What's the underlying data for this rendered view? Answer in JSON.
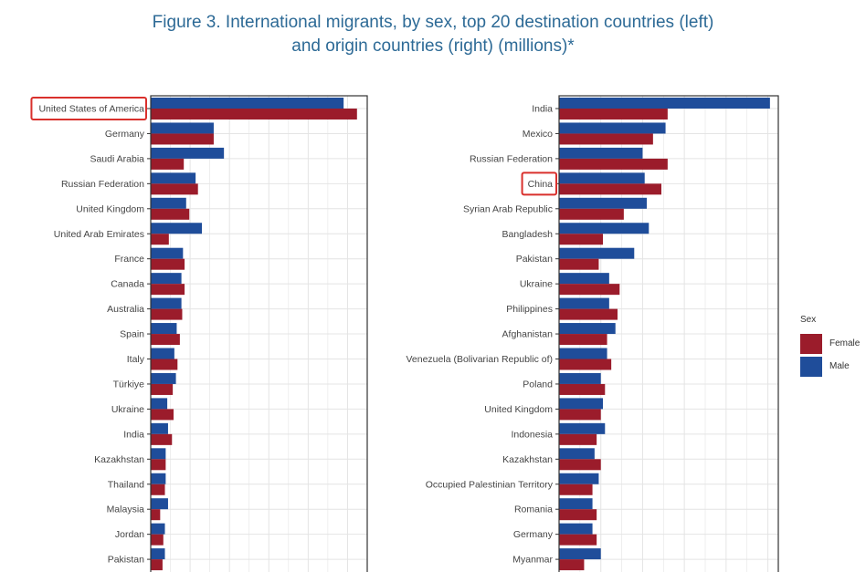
{
  "title_line1": "Figure 3. International migrants, by sex, top 20 destination countries (left)",
  "title_line2": "and origin countries (right) (millions)*",
  "colors": {
    "female": "#9b1c2b",
    "male": "#1f4d9a",
    "highlight": "#d9302c",
    "grid": "#e4e4e4",
    "title": "#2d6a96"
  },
  "legend": {
    "title": "Sex",
    "female_label": "Female",
    "male_label": "Male"
  },
  "chart_data": [
    {
      "type": "bar",
      "orientation": "horizontal",
      "highlighted_category": "United States of America",
      "categories": [
        "United States of America",
        "Germany",
        "Saudi Arabia",
        "Russian Federation",
        "United Kingdom",
        "United Arab Emirates",
        "France",
        "Canada",
        "Australia",
        "Spain",
        "Italy",
        "Türkiye",
        "Ukraine",
        "India",
        "Kazakhstan",
        "Thailand",
        "Malaysia",
        "Jordan",
        "Pakistan"
      ],
      "series": [
        {
          "name": "Male",
          "values": [
            24.5,
            8.0,
            9.3,
            5.7,
            4.5,
            6.5,
            4.1,
            3.9,
            3.9,
            3.3,
            3.0,
            3.2,
            2.1,
            2.2,
            1.9,
            1.9,
            2.2,
            1.8,
            1.8
          ]
        },
        {
          "name": "Female",
          "values": [
            26.2,
            8.0,
            4.2,
            6.0,
            4.9,
            2.3,
            4.3,
            4.3,
            4.0,
            3.7,
            3.4,
            2.8,
            2.9,
            2.7,
            1.9,
            1.8,
            1.2,
            1.6,
            1.5
          ]
        }
      ],
      "xlim": [
        0,
        27.5
      ],
      "grid": true
    },
    {
      "type": "bar",
      "orientation": "horizontal",
      "highlighted_category": "China",
      "categories": [
        "India",
        "Mexico",
        "Russian Federation",
        "China",
        "Syrian Arab Republic",
        "Bangladesh",
        "Pakistan",
        "Ukraine",
        "Philippines",
        "Afghanistan",
        "Venezuela (Bolivarian Republic of)",
        "Poland",
        "United Kingdom",
        "Indonesia",
        "Kazakhstan",
        "Occupied Palestinian Territory",
        "Romania",
        "Germany",
        "Myanmar"
      ],
      "series": [
        {
          "name": "Male",
          "values": [
            10.1,
            5.1,
            4.0,
            4.1,
            4.2,
            4.3,
            3.6,
            2.4,
            2.4,
            2.7,
            2.3,
            2.0,
            2.1,
            2.2,
            1.7,
            1.9,
            1.6,
            1.6,
            2.0
          ]
        },
        {
          "name": "Female",
          "values": [
            5.2,
            4.5,
            5.2,
            4.9,
            3.1,
            2.1,
            1.9,
            2.9,
            2.8,
            2.3,
            2.5,
            2.2,
            2.0,
            1.8,
            2.0,
            1.6,
            1.8,
            1.8,
            1.2
          ]
        }
      ],
      "xlim": [
        0,
        10.5
      ],
      "grid": true
    }
  ]
}
